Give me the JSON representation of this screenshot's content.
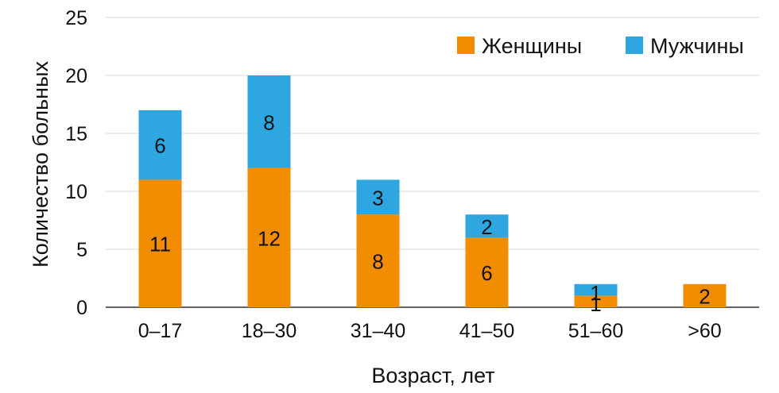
{
  "chart_data": {
    "type": "bar",
    "stacked": true,
    "categories": [
      "0–17",
      "18–30",
      "31–40",
      "41–50",
      "51–60",
      ">60"
    ],
    "series": [
      {
        "name": "Женщины",
        "values": [
          11,
          12,
          8,
          6,
          1,
          2
        ],
        "color": "#f28c00"
      },
      {
        "name": "Мужчины",
        "values": [
          6,
          8,
          3,
          2,
          1,
          0
        ],
        "color": "#2ea6df"
      }
    ],
    "xlabel": "Возраст, лет",
    "ylabel": "Количество больных",
    "ylim": [
      0,
      25
    ],
    "yticks": [
      0,
      5,
      10,
      15,
      20,
      25
    ],
    "grid": "horizontal",
    "legend": "top-right"
  }
}
